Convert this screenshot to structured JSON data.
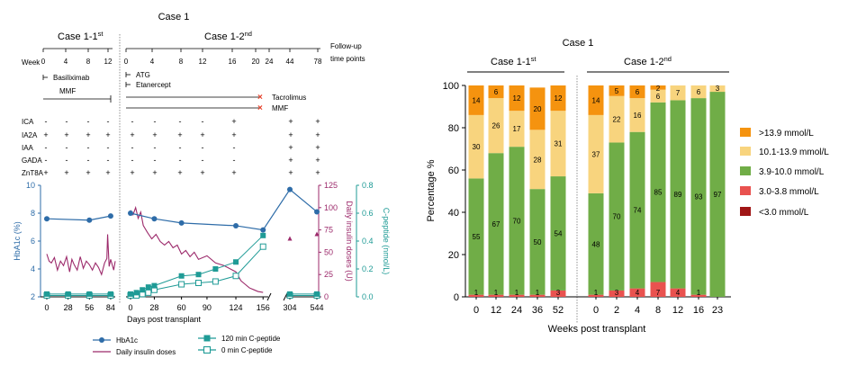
{
  "colors": {
    "hba1c": "#2e6ca8",
    "insulin": "#9c2a6b",
    "cpeptide": "#1f9b96",
    "cat_gt13_9": "#f5930f",
    "cat_10_13_9": "#f8d47e",
    "cat_3_9_10": "#70ad47",
    "cat_3_3_8": "#e9524f",
    "cat_lt3": "#a01616"
  },
  "left_panel": {
    "title": "Case 1",
    "segment1_title": "Case 1-1st",
    "segment2_title": "Case 1-2nd",
    "followup_label_1": "Follow-up",
    "followup_label_2": "time points",
    "week_label": "Week",
    "week_ticks_1": [
      "0",
      "4",
      "8",
      "12"
    ],
    "week_ticks_2": [
      "0",
      "4",
      "8",
      "12",
      "16",
      "20",
      "24",
      "44",
      "78"
    ],
    "therapies": {
      "basiliximab": "Basiliximab",
      "mmf_1": "MMF",
      "atg": "ATG",
      "etanercept": "Etanercept",
      "tacrolimus": "Tacrolimus",
      "mmf_2": "MMF"
    },
    "antibodies": {
      "labels": [
        "ICA",
        "IA2A",
        "IAA",
        "GADA",
        "ZnT8A"
      ],
      "segment1": [
        [
          "-",
          "-",
          "-",
          "-"
        ],
        [
          "+",
          "+",
          "+",
          "+"
        ],
        [
          "-",
          "-",
          "-",
          "-"
        ],
        [
          "-",
          "-",
          "-",
          "-"
        ],
        [
          "+",
          "+",
          "+",
          "+"
        ]
      ],
      "segment2": [
        [
          "-",
          "-",
          "-",
          "-",
          "+",
          "+",
          "+"
        ],
        [
          "+",
          "+",
          "+",
          "+",
          "+",
          "+",
          "+"
        ],
        [
          "-",
          "-",
          "-",
          "-",
          "-",
          "+",
          "+"
        ],
        [
          "-",
          "-",
          "-",
          "-",
          "-",
          "+",
          "+"
        ],
        [
          "+",
          "+",
          "+",
          "+",
          "+",
          "+",
          "+"
        ]
      ]
    },
    "chart_data": {
      "type": "line",
      "xlabel": "Days post transplant",
      "x_ticks": [
        "0",
        "28",
        "56",
        "84",
        "0",
        "28",
        "60",
        "90",
        "124",
        "156",
        "304",
        "544"
      ],
      "y_left_label": "HbA1c (%)",
      "y_left_ticks": [
        "2",
        "4",
        "6",
        "8",
        "10"
      ],
      "y_left_range": [
        2,
        10
      ],
      "y_mid_label": "Daily insulin doses (U)",
      "y_mid_ticks": [
        "0",
        "25",
        "50",
        "75",
        "100",
        "125"
      ],
      "y_mid_range": [
        0,
        125
      ],
      "y_right_label": "C-peptide (nmol/L)",
      "y_right_ticks": [
        "0.0",
        "0.2",
        "0.4",
        "0.6",
        "0.8"
      ],
      "y_right_range": [
        0,
        0.8
      ],
      "series": [
        {
          "name": "HbA1c",
          "segment1": {
            "x": [
              0,
              56,
              84
            ],
            "y": [
              7.6,
              7.5,
              7.8
            ]
          },
          "segment2": {
            "x": [
              0,
              28,
              60,
              124,
              156
            ],
            "y": [
              8.0,
              7.6,
              7.3,
              7.1,
              6.8
            ]
          },
          "segment3": {
            "x": [
              304,
              544
            ],
            "y": [
              9.7,
              8.1
            ]
          }
        },
        {
          "name": "Daily insulin doses",
          "segment1": {
            "x": [
              0,
              3,
              6,
              10,
              14,
              18,
              22,
              26,
              30,
              33,
              36,
              40,
              44,
              48,
              52,
              56,
              60,
              64,
              68,
              72,
              76,
              79,
              80,
              82,
              84,
              88,
              90
            ],
            "y": [
              48,
              40,
              38,
              44,
              30,
              40,
              35,
              45,
              28,
              42,
              36,
              30,
              45,
              32,
              40,
              36,
              30,
              38,
              33,
              25,
              38,
              43,
              70,
              34,
              42,
              30,
              40
            ]
          },
          "segment2": {
            "x": [
              0,
              3,
              6,
              9,
              12,
              15,
              20,
              25,
              30,
              35,
              40,
              45,
              50,
              55,
              60,
              65,
              70,
              75,
              80,
              90,
              100,
              110,
              120,
              124,
              130,
              135,
              140,
              145,
              150,
              156
            ],
            "y": [
              97,
              92,
              100,
              88,
              95,
              80,
              72,
              65,
              70,
              62,
              58,
              62,
              55,
              58,
              48,
              52,
              45,
              50,
              42,
              46,
              38,
              35,
              30,
              28,
              18,
              14,
              10,
              8,
              6,
              5
            ]
          },
          "segment3": {
            "x": [
              304,
              544
            ],
            "y": [
              65,
              70
            ]
          }
        },
        {
          "name": "120 min C-peptide",
          "segment1": {
            "x": [
              0,
              28,
              56,
              84
            ],
            "y": [
              0.02,
              0.02,
              0.02,
              0.02
            ]
          },
          "segment2": {
            "x": [
              0,
              7,
              14,
              21,
              28,
              60,
              80,
              100,
              124,
              156
            ],
            "y": [
              0.02,
              0.03,
              0.05,
              0.07,
              0.08,
              0.15,
              0.16,
              0.2,
              0.25,
              0.44
            ]
          },
          "segment3": {
            "x": [
              304,
              544
            ],
            "y": [
              0.02,
              0.02
            ]
          }
        },
        {
          "name": "0 min C-peptide",
          "segment1": {
            "x": [
              0,
              28,
              56,
              84
            ],
            "y": [
              0.01,
              0.01,
              0.01,
              0.01
            ]
          },
          "segment2": {
            "x": [
              0,
              7,
              14,
              21,
              28,
              60,
              80,
              100,
              124,
              156
            ],
            "y": [
              0.01,
              0.01,
              0.02,
              0.03,
              0.05,
              0.09,
              0.1,
              0.11,
              0.15,
              0.36
            ]
          },
          "segment3": {
            "x": [
              304,
              544
            ],
            "y": [
              0.01,
              0.01
            ]
          }
        }
      ],
      "legend": [
        "HbA1c",
        "120 min C-peptide",
        "Daily insulin doses",
        "0 min C-peptide"
      ]
    }
  },
  "right_panel": {
    "chart_data": {
      "type": "bar",
      "stacked": true,
      "title": "Case 1",
      "group1_title": "Case 1-1st",
      "group2_title": "Case 1-2nd",
      "xlabel": "Weeks post transplant",
      "ylabel": "Percentage %",
      "ylim": [
        0,
        100
      ],
      "y_ticks": [
        "0",
        "20",
        "40",
        "60",
        "80",
        "100"
      ],
      "categories": [
        "0",
        "12",
        "24",
        "36",
        "52",
        "0",
        "2",
        "4",
        "8",
        "12",
        "16",
        "23"
      ],
      "series": [
        {
          "name": "<3.0  mmol/L",
          "values": [
            0,
            0,
            0,
            0,
            0,
            0,
            0,
            0,
            0,
            0,
            0,
            0
          ]
        },
        {
          "name": "3.0-3.8 mmol/L",
          "values": [
            1,
            1,
            1,
            1,
            3,
            1,
            3,
            4,
            7,
            4,
            1,
            0
          ]
        },
        {
          "name": "3.9-10.0 mmol/L",
          "values": [
            55,
            67,
            70,
            50,
            54,
            48,
            70,
            74,
            85,
            89,
            93,
            97
          ]
        },
        {
          "name": "10.1-13.9 mmol/L",
          "values": [
            30,
            26,
            17,
            28,
            31,
            37,
            22,
            16,
            6,
            7,
            6,
            3
          ]
        },
        {
          "name": ">13.9 mmol/L",
          "values": [
            14,
            6,
            12,
            20,
            12,
            14,
            5,
            6,
            2,
            0,
            0,
            0
          ]
        }
      ],
      "labels": [
        [
          "1",
          "55",
          "30",
          "14"
        ],
        [
          "1",
          "67",
          "26",
          "6"
        ],
        [
          "1",
          "70",
          "17",
          "12"
        ],
        [
          "1",
          "50",
          "28",
          "20"
        ],
        [
          "3",
          "54",
          "31",
          "12"
        ],
        [
          "1",
          "48",
          "37",
          "14"
        ],
        [
          "3",
          "70",
          "22",
          "5"
        ],
        [
          "4",
          "74",
          "16",
          "6"
        ],
        [
          "7",
          "85",
          "6",
          "2"
        ],
        [
          "4",
          "89",
          "7",
          ""
        ],
        [
          "1",
          "93",
          "6",
          ""
        ],
        [
          "",
          "97",
          "3",
          ""
        ]
      ],
      "legend": [
        ">13.9 mmol/L",
        "10.1-13.9 mmol/L",
        "3.9-10.0 mmol/L",
        "3.0-3.8 mmol/L",
        "<3.0  mmol/L"
      ]
    }
  }
}
